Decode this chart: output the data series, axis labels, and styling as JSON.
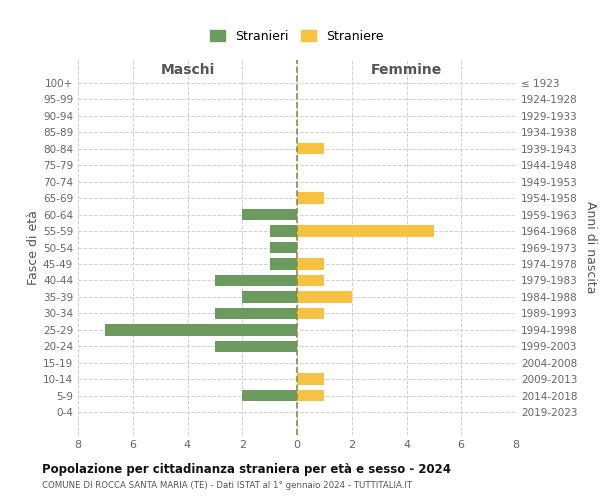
{
  "age_groups": [
    "100+",
    "95-99",
    "90-94",
    "85-89",
    "80-84",
    "75-79",
    "70-74",
    "65-69",
    "60-64",
    "55-59",
    "50-54",
    "45-49",
    "40-44",
    "35-39",
    "30-34",
    "25-29",
    "20-24",
    "15-19",
    "10-14",
    "5-9",
    "0-4"
  ],
  "birth_years": [
    "≤ 1923",
    "1924-1928",
    "1929-1933",
    "1934-1938",
    "1939-1943",
    "1944-1948",
    "1949-1953",
    "1954-1958",
    "1959-1963",
    "1964-1968",
    "1969-1973",
    "1974-1978",
    "1979-1983",
    "1984-1988",
    "1989-1993",
    "1994-1998",
    "1999-2003",
    "2004-2008",
    "2009-2013",
    "2014-2018",
    "2019-2023"
  ],
  "maschi": [
    0,
    0,
    0,
    0,
    0,
    0,
    0,
    0,
    2,
    1,
    1,
    1,
    3,
    2,
    3,
    7,
    3,
    0,
    0,
    2,
    0
  ],
  "femmine": [
    0,
    0,
    0,
    0,
    1,
    0,
    0,
    1,
    0,
    5,
    0,
    1,
    1,
    2,
    1,
    0,
    0,
    0,
    1,
    1,
    0
  ],
  "stranieri_color": "#6b9b5e",
  "straniere_color": "#f5c242",
  "background_color": "#ffffff",
  "grid_color": "#d0d0d0",
  "center_line_color": "#8b8b4b",
  "title": "Popolazione per cittadinanza straniera per età e sesso - 2024",
  "subtitle": "COMUNE DI ROCCA SANTA MARIA (TE) - Dati ISTAT al 1° gennaio 2024 - TUTTITALIA.IT",
  "xlabel_left": "Maschi",
  "xlabel_right": "Femmine",
  "ylabel_left": "Fasce di età",
  "ylabel_right": "Anni di nascita",
  "xlim": 8,
  "legend_labels": [
    "Stranieri",
    "Straniere"
  ]
}
